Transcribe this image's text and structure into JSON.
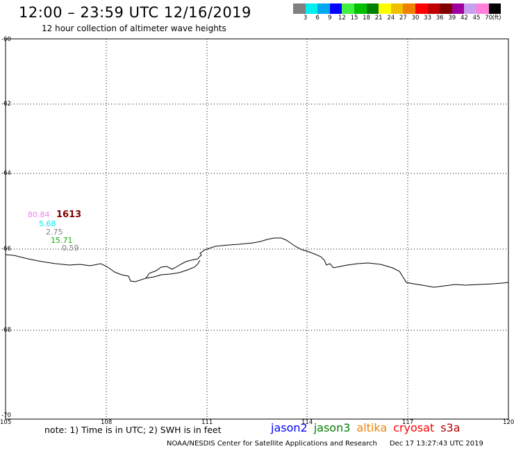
{
  "title": "12:00 – 23:59 UTC 12/16/2019",
  "subtitle": "12 hour collection of altimeter wave heights",
  "legend": {
    "labels": [
      "3",
      "6",
      "9",
      "12",
      "15",
      "18",
      "21",
      "24",
      "27",
      "30",
      "33",
      "36",
      "39",
      "42",
      "45",
      "70"
    ],
    "unit": "(ft)",
    "colors": [
      "#808080",
      "#00f0f0",
      "#00a8f0",
      "#0000ff",
      "#40f040",
      "#00c000",
      "#008000",
      "#ffff00",
      "#f0c000",
      "#f08000",
      "#ff0000",
      "#c00000",
      "#800000",
      "#a000a0",
      "#c8a0f0",
      "#ff80d8",
      "#000000"
    ]
  },
  "map": {
    "lat_labels": [
      "-60",
      "-62",
      "-64",
      "-66",
      "-68",
      "-70"
    ],
    "lon_labels": [
      "105",
      "108",
      "111",
      "114",
      "117",
      "120"
    ]
  },
  "wave_labels": [
    {
      "text": "80.84",
      "color": "#ee82ee"
    },
    {
      "text": "1613",
      "color": "#800000"
    },
    {
      "text": "5.68",
      "color": "#00e8f0"
    },
    {
      "text": "2.75",
      "color": "#808080"
    },
    {
      "text": "15.71",
      "color": "#00b000"
    },
    {
      "text": "0.59",
      "color": "#808080"
    }
  ],
  "note": "note: 1) Time is in UTC; 2) SWH is in feet",
  "satellites": [
    {
      "name": "jason2",
      "color": "#0000ff"
    },
    {
      "name": "jason3",
      "color": "#008000"
    },
    {
      "name": "altika",
      "color": "#f08000"
    },
    {
      "name": "cryosat",
      "color": "#ff0000"
    },
    {
      "name": "s3a",
      "color": "#b00000"
    }
  ],
  "credit": "NOAA/NESDIS Center for Satellite Applications and Research",
  "timestamp": "Dec 17 13:27:43 UTC 2019"
}
